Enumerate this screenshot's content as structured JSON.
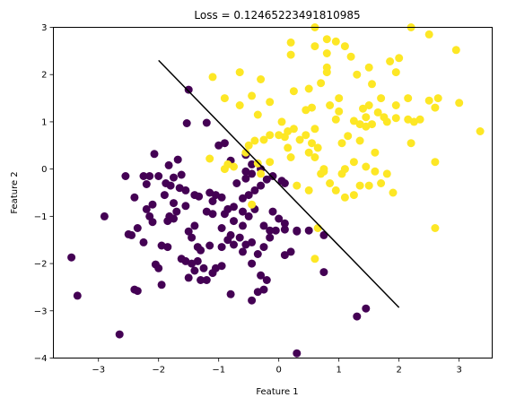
{
  "chart_data": {
    "type": "scatter",
    "title": "Loss = 0.12465223491810985",
    "xlabel": "Feature 1",
    "ylabel": "Feature 2",
    "xlim": [
      -3.75,
      3.55
    ],
    "ylim": [
      -4,
      3
    ],
    "xticks": [
      -3,
      -2,
      -1,
      0,
      1,
      2,
      3
    ],
    "yticks": [
      -4,
      -3,
      -2,
      -1,
      0,
      1,
      2,
      3
    ],
    "grid": false,
    "colors": {
      "class0": "#440154",
      "class1": "#fde725",
      "boundary": "#000000"
    },
    "decision_boundary": {
      "x": [
        -2.0,
        2.0
      ],
      "y": [
        2.3,
        -2.93
      ]
    },
    "series": [
      {
        "class": 0,
        "points": [
          [
            -1.5,
            1.68
          ],
          [
            -1.53,
            0.97
          ],
          [
            -1.2,
            0.98
          ],
          [
            -1.0,
            0.5
          ],
          [
            -0.9,
            0.55
          ],
          [
            -2.07,
            0.32
          ],
          [
            -1.68,
            0.2
          ],
          [
            -1.83,
            0.08
          ],
          [
            -2.15,
            -0.15
          ],
          [
            -2.0,
            -0.15
          ],
          [
            -1.75,
            -0.18
          ],
          [
            -1.62,
            -0.12
          ],
          [
            -1.88,
            -0.3
          ],
          [
            -1.8,
            -0.35
          ],
          [
            -1.65,
            -0.4
          ],
          [
            -2.55,
            -0.15
          ],
          [
            -2.25,
            -0.15
          ],
          [
            -2.2,
            -0.32
          ],
          [
            -1.9,
            -0.55
          ],
          [
            -1.55,
            -0.45
          ],
          [
            -1.4,
            -0.55
          ],
          [
            -1.33,
            -0.58
          ],
          [
            -1.15,
            -0.5
          ],
          [
            -1.05,
            -0.55
          ],
          [
            -1.1,
            -0.68
          ],
          [
            -0.95,
            -0.6
          ],
          [
            -0.85,
            -0.85
          ],
          [
            -1.1,
            -0.95
          ],
          [
            -1.2,
            -0.9
          ],
          [
            -1.55,
            -0.78
          ],
          [
            -1.75,
            -0.72
          ],
          [
            -1.7,
            -0.9
          ],
          [
            -1.82,
            -1.0
          ],
          [
            -1.85,
            -1.1
          ],
          [
            -1.75,
            -1.05
          ],
          [
            -2.1,
            -0.75
          ],
          [
            -2.2,
            -0.85
          ],
          [
            -2.15,
            -1.0
          ],
          [
            -2.1,
            -1.12
          ],
          [
            -2.4,
            -0.6
          ],
          [
            -2.9,
            -1.0
          ],
          [
            -2.35,
            -1.25
          ],
          [
            -2.5,
            -1.38
          ],
          [
            -2.45,
            -1.4
          ],
          [
            -2.25,
            -1.55
          ],
          [
            -1.95,
            -1.62
          ],
          [
            -1.4,
            -1.2
          ],
          [
            -1.45,
            -1.45
          ],
          [
            -1.5,
            -1.32
          ],
          [
            -1.35,
            -1.65
          ],
          [
            -1.62,
            -1.9
          ],
          [
            -1.85,
            -1.65
          ],
          [
            -2.05,
            -2.02
          ],
          [
            -2.0,
            -2.1
          ],
          [
            -1.95,
            -2.45
          ],
          [
            -1.55,
            -1.95
          ],
          [
            -1.45,
            -2.0
          ],
          [
            -1.3,
            -1.72
          ],
          [
            -1.15,
            -1.62
          ],
          [
            -0.95,
            -1.65
          ],
          [
            -0.85,
            -1.5
          ],
          [
            -0.75,
            -1.6
          ],
          [
            -0.65,
            -1.45
          ],
          [
            -0.55,
            -1.6
          ],
          [
            -0.45,
            -1.55
          ],
          [
            -0.35,
            -1.8
          ],
          [
            -0.25,
            -1.65
          ],
          [
            -0.15,
            -1.45
          ],
          [
            -0.05,
            -1.3
          ],
          [
            -0.15,
            -1.3
          ],
          [
            -0.25,
            -1.2
          ],
          [
            0.1,
            -1.28
          ],
          [
            0.3,
            -1.3
          ],
          [
            0.0,
            -1.05
          ],
          [
            -0.1,
            -0.9
          ],
          [
            -0.4,
            -0.85
          ],
          [
            -0.6,
            -0.9
          ],
          [
            -0.75,
            -0.8
          ],
          [
            -0.9,
            -0.95
          ],
          [
            -0.5,
            -1.0
          ],
          [
            -0.6,
            -1.2
          ],
          [
            -0.75,
            -1.1
          ],
          [
            -0.8,
            -1.4
          ],
          [
            -0.95,
            -1.25
          ],
          [
            -0.4,
            -0.45
          ],
          [
            -0.3,
            -0.35
          ],
          [
            -0.5,
            -0.55
          ],
          [
            -0.6,
            -0.62
          ],
          [
            -0.7,
            -0.3
          ],
          [
            -0.55,
            -0.2
          ],
          [
            -0.45,
            -0.1
          ],
          [
            -0.2,
            -0.22
          ],
          [
            -0.1,
            -0.15
          ],
          [
            0.05,
            -0.25
          ],
          [
            0.1,
            -1.15
          ],
          [
            -1.35,
            -1.95
          ],
          [
            -1.25,
            -2.1
          ],
          [
            -1.1,
            -2.2
          ],
          [
            -1.05,
            -2.1
          ],
          [
            -0.95,
            -2.05
          ],
          [
            -1.3,
            -2.35
          ],
          [
            -1.2,
            -2.35
          ],
          [
            -1.5,
            -2.3
          ],
          [
            -1.4,
            -2.15
          ],
          [
            -0.6,
            -1.75
          ],
          [
            -0.45,
            -2.0
          ],
          [
            -0.3,
            -2.25
          ],
          [
            -0.35,
            -2.6
          ],
          [
            -0.25,
            -2.55
          ],
          [
            -0.2,
            -2.35
          ],
          [
            -0.8,
            -2.65
          ],
          [
            -0.45,
            -2.78
          ],
          [
            0.1,
            -1.82
          ],
          [
            0.2,
            -1.75
          ],
          [
            0.3,
            -1.32
          ],
          [
            0.5,
            -1.3
          ],
          [
            0.75,
            -1.4
          ],
          [
            0.75,
            -2.18
          ],
          [
            -2.4,
            -2.55
          ],
          [
            -2.35,
            -2.58
          ],
          [
            -3.45,
            -1.87
          ],
          [
            -3.35,
            -2.68
          ],
          [
            -2.65,
            -3.5
          ],
          [
            0.3,
            -3.9
          ],
          [
            1.3,
            -3.12
          ],
          [
            1.45,
            -2.95
          ],
          [
            -0.55,
            0.3
          ],
          [
            -0.3,
            0.0
          ],
          [
            0.1,
            -0.3
          ],
          [
            -0.45,
            0.1
          ],
          [
            -0.55,
            -0.05
          ],
          [
            -0.8,
            0.18
          ]
        ]
      },
      {
        "class": 1,
        "points": [
          [
            0.2,
            2.68
          ],
          [
            0.2,
            2.42
          ],
          [
            0.6,
            3.0
          ],
          [
            0.6,
            2.6
          ],
          [
            0.8,
            2.45
          ],
          [
            0.8,
            2.15
          ],
          [
            0.8,
            2.75
          ],
          [
            0.95,
            2.7
          ],
          [
            1.1,
            2.6
          ],
          [
            1.2,
            2.38
          ],
          [
            1.5,
            2.15
          ],
          [
            1.3,
            2.0
          ],
          [
            1.85,
            2.28
          ],
          [
            1.95,
            2.05
          ],
          [
            2.0,
            2.35
          ],
          [
            2.2,
            3.0
          ],
          [
            2.5,
            2.85
          ],
          [
            2.95,
            2.52
          ],
          [
            -1.1,
            1.95
          ],
          [
            -0.65,
            2.05
          ],
          [
            -0.3,
            1.9
          ],
          [
            -0.9,
            1.5
          ],
          [
            -0.65,
            1.35
          ],
          [
            -0.45,
            1.55
          ],
          [
            -0.35,
            1.15
          ],
          [
            -0.15,
            1.42
          ],
          [
            0.25,
            1.65
          ],
          [
            0.5,
            1.7
          ],
          [
            0.7,
            1.82
          ],
          [
            0.8,
            2.05
          ],
          [
            0.55,
            1.3
          ],
          [
            0.45,
            1.25
          ],
          [
            0.85,
            1.35
          ],
          [
            1.0,
            1.5
          ],
          [
            1.0,
            1.22
          ],
          [
            0.95,
            1.05
          ],
          [
            1.25,
            1.02
          ],
          [
            1.4,
            1.28
          ],
          [
            1.45,
            1.1
          ],
          [
            1.5,
            1.35
          ],
          [
            1.55,
            0.95
          ],
          [
            1.65,
            1.2
          ],
          [
            1.75,
            1.1
          ],
          [
            1.8,
            1.0
          ],
          [
            1.7,
            1.5
          ],
          [
            1.55,
            1.8
          ],
          [
            1.95,
            1.35
          ],
          [
            2.15,
            1.5
          ],
          [
            2.25,
            1.0
          ],
          [
            2.35,
            1.05
          ],
          [
            2.5,
            1.45
          ],
          [
            2.6,
            1.3
          ],
          [
            2.65,
            1.5
          ],
          [
            2.15,
            1.05
          ],
          [
            1.95,
            1.08
          ],
          [
            2.2,
            0.55
          ],
          [
            1.35,
            0.6
          ],
          [
            1.05,
            0.55
          ],
          [
            1.15,
            0.7
          ],
          [
            1.45,
            0.9
          ],
          [
            1.25,
            0.15
          ],
          [
            1.05,
            -0.1
          ],
          [
            1.45,
            0.05
          ],
          [
            1.6,
            -0.05
          ],
          [
            1.8,
            -0.1
          ],
          [
            1.9,
            -0.5
          ],
          [
            1.5,
            -0.35
          ],
          [
            1.35,
            -0.35
          ],
          [
            1.7,
            -0.3
          ],
          [
            0.75,
            -0.05
          ],
          [
            0.6,
            0.25
          ],
          [
            0.5,
            0.35
          ],
          [
            0.55,
            0.55
          ],
          [
            0.6,
            0.85
          ],
          [
            0.45,
            0.72
          ],
          [
            0.35,
            0.62
          ],
          [
            0.25,
            0.85
          ],
          [
            0.1,
            0.68
          ],
          [
            0.0,
            0.72
          ],
          [
            -0.15,
            0.72
          ],
          [
            -0.25,
            0.62
          ],
          [
            -0.4,
            0.6
          ],
          [
            -0.5,
            0.5
          ],
          [
            -0.55,
            0.35
          ],
          [
            -0.75,
            0.05
          ],
          [
            -0.9,
            0.0
          ],
          [
            -0.85,
            0.1
          ],
          [
            -0.35,
            0.12
          ],
          [
            -0.15,
            0.15
          ],
          [
            0.15,
            0.45
          ],
          [
            0.2,
            0.25
          ],
          [
            0.3,
            -0.35
          ],
          [
            0.5,
            -0.45
          ],
          [
            0.7,
            -0.1
          ],
          [
            0.75,
            0.0
          ],
          [
            0.85,
            -0.3
          ],
          [
            0.95,
            -0.45
          ],
          [
            0.65,
            -1.25
          ],
          [
            0.6,
            -1.9
          ],
          [
            1.1,
            -0.6
          ],
          [
            1.25,
            -0.55
          ],
          [
            -0.3,
            -0.1
          ],
          [
            -0.45,
            -0.75
          ],
          [
            -1.15,
            0.22
          ],
          [
            2.6,
            0.15
          ],
          [
            3.35,
            0.8
          ],
          [
            2.6,
            -1.25
          ],
          [
            3.0,
            1.4
          ],
          [
            0.05,
            1.0
          ],
          [
            0.15,
            0.8
          ],
          [
            1.35,
            0.95
          ],
          [
            1.6,
            0.35
          ],
          [
            0.65,
            0.45
          ],
          [
            1.1,
            0.0
          ]
        ]
      }
    ]
  }
}
